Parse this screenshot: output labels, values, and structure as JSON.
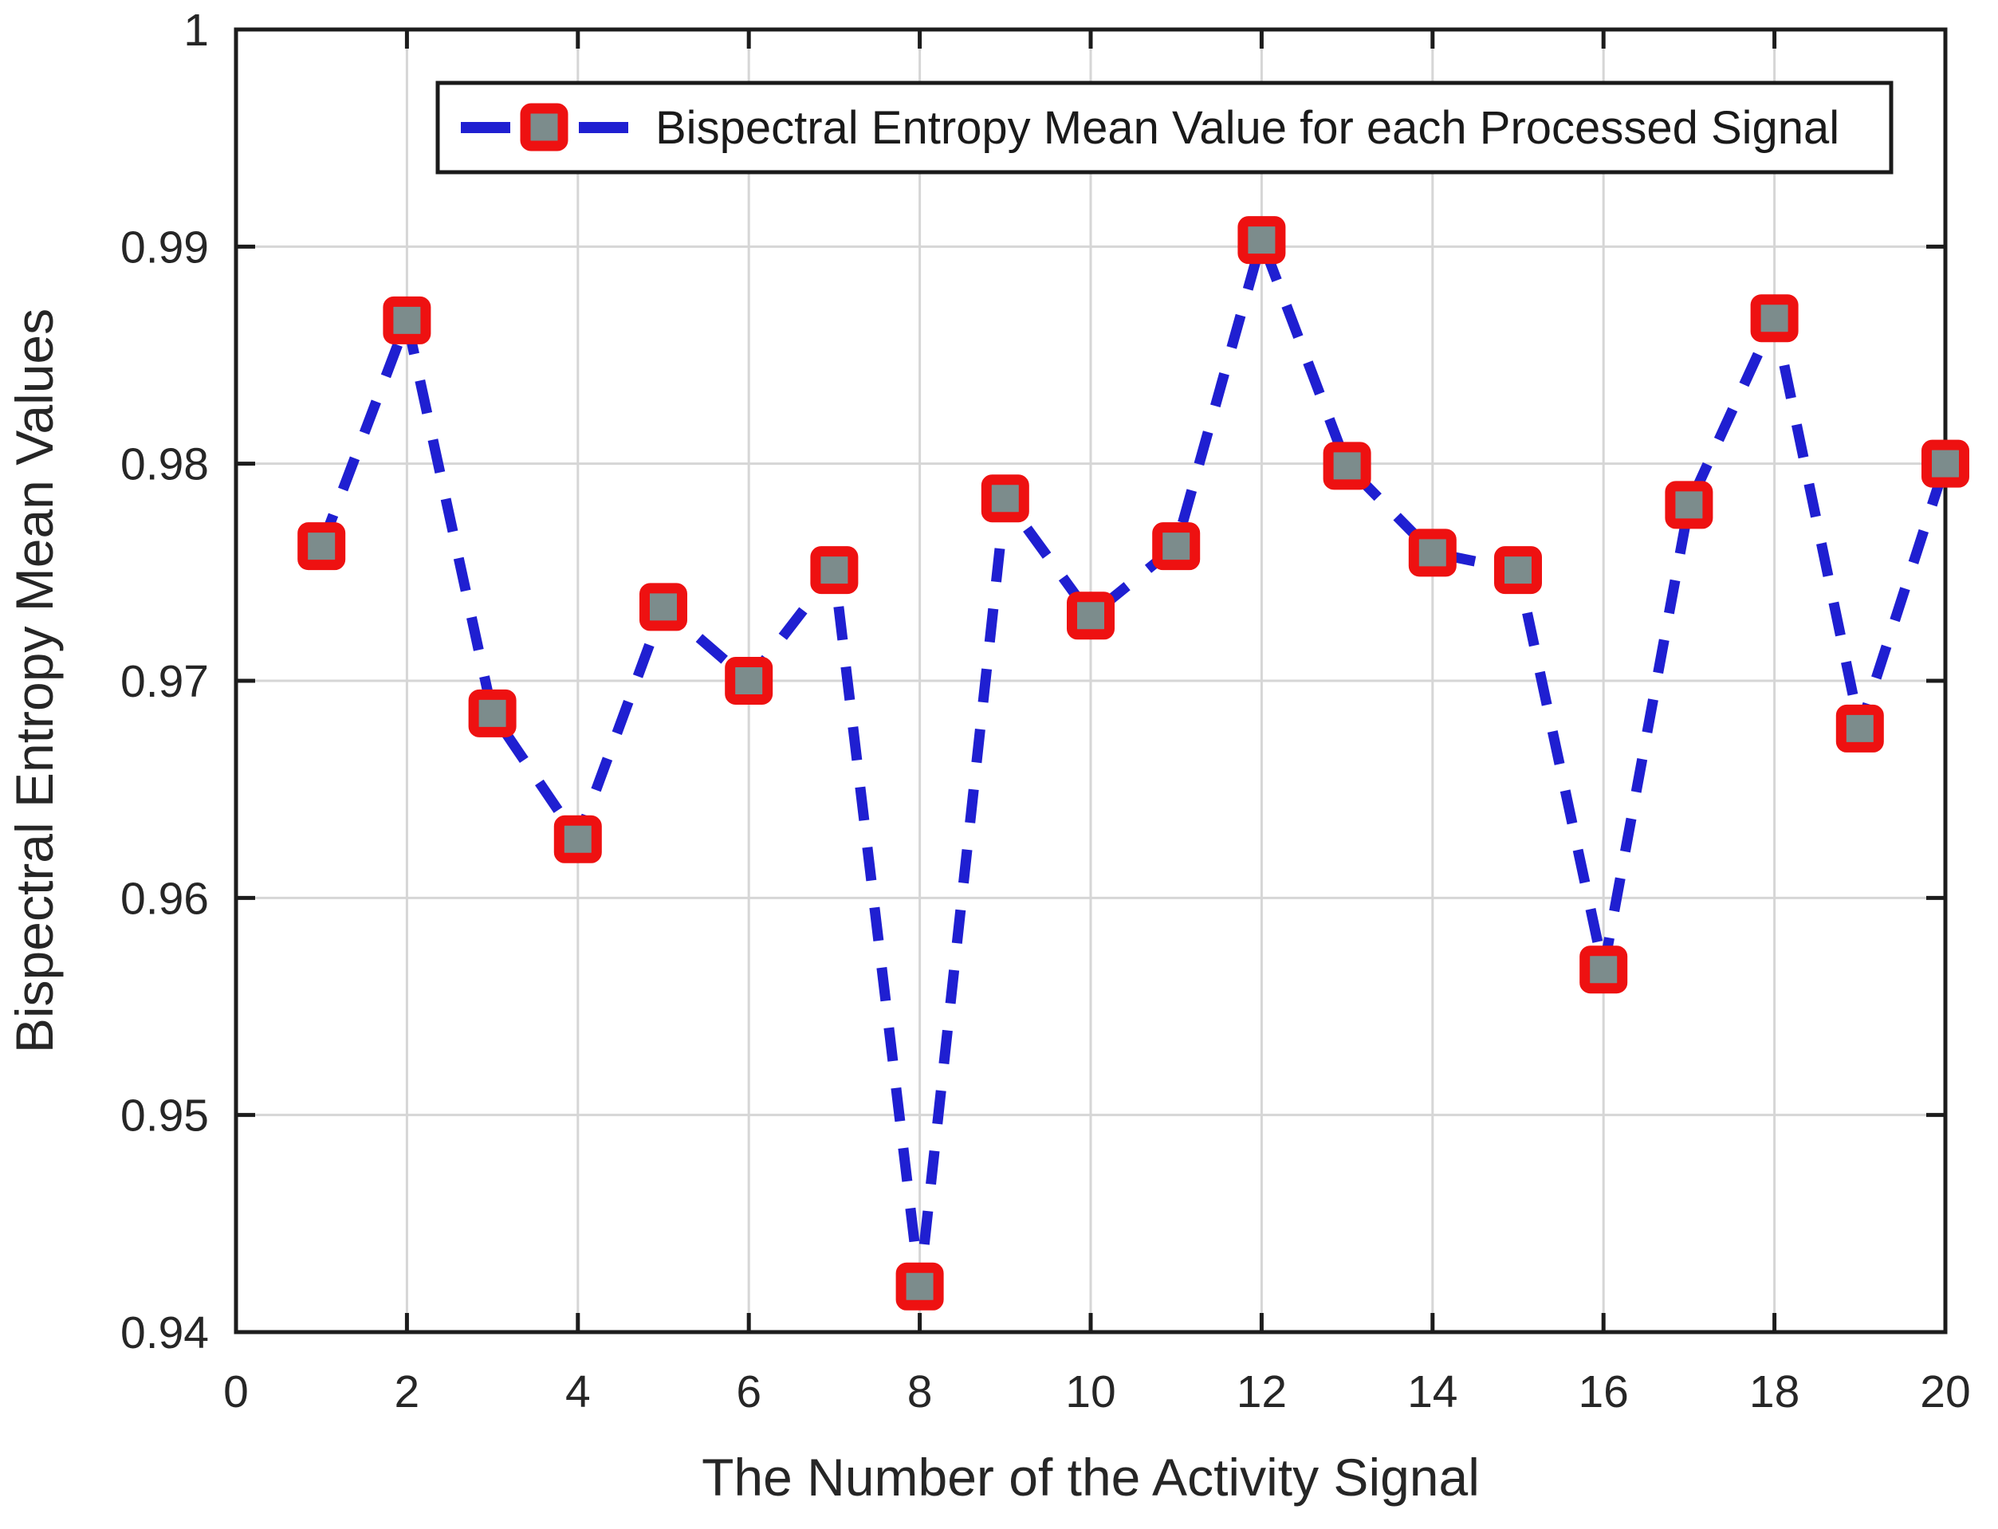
{
  "chart_data": {
    "type": "line",
    "title": "",
    "xlabel": "The Number of the Activity Signal",
    "ylabel": "Bispectral Entropy Mean Values",
    "x": [
      1,
      2,
      3,
      4,
      5,
      6,
      7,
      8,
      9,
      10,
      11,
      12,
      13,
      14,
      15,
      16,
      17,
      18,
      19,
      20
    ],
    "values": [
      0.9762,
      0.9866,
      0.9685,
      0.9627,
      0.9734,
      0.97,
      0.9751,
      0.9421,
      0.9784,
      0.973,
      0.9762,
      0.9903,
      0.9799,
      0.9759,
      0.9751,
      0.9567,
      0.9781,
      0.9867,
      0.9678,
      0.98
    ],
    "series_name": "Bispectral Entropy Mean Value for each Processed Signal",
    "line_style": "dashed",
    "marker": "square",
    "xlim": [
      0,
      20
    ],
    "ylim": [
      0.94,
      1
    ],
    "xticks": [
      0,
      2,
      4,
      6,
      8,
      10,
      12,
      14,
      16,
      18,
      20
    ],
    "xtick_labels": [
      "0",
      "2",
      "4",
      "6",
      "8",
      "10",
      "12",
      "14",
      "16",
      "18",
      "20"
    ],
    "yticks": [
      0.94,
      0.95,
      0.96,
      0.97,
      0.98,
      0.99,
      1
    ],
    "ytick_labels": [
      "0.94",
      "0.95",
      "0.96",
      "0.97",
      "0.98",
      "0.99",
      "1"
    ],
    "grid": true,
    "legend": {
      "label": "Bispectral Entropy Mean Value for each Processed Signal",
      "position": "top-inside",
      "framed": true
    }
  },
  "colors": {
    "line": "#1f1fd1",
    "marker_edge": "#ee1111",
    "marker_face": "#7c8c8c",
    "grid": "#d6d6d6",
    "axis": "#1c1c1c",
    "text": "#262626",
    "legend_border": "#1a1a1a",
    "background": "#ffffff"
  }
}
